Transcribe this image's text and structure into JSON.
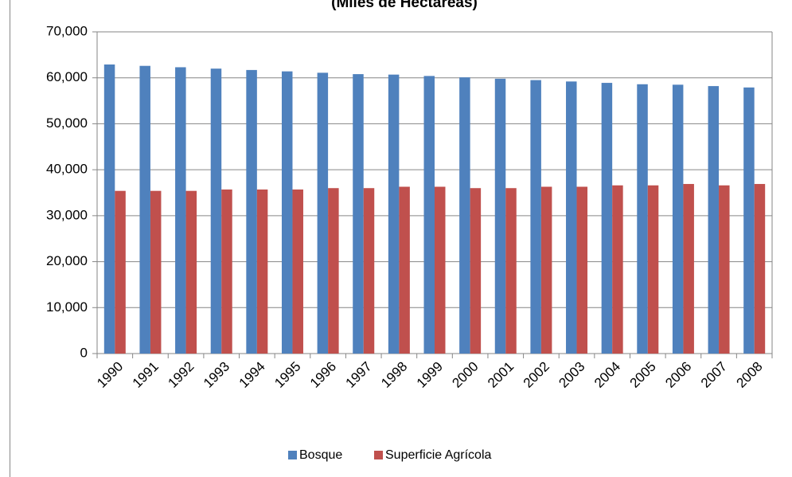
{
  "chart_data": {
    "type": "bar",
    "title": "(Miles de Hectáreas)",
    "categories": [
      "1990",
      "1991",
      "1992",
      "1993",
      "1994",
      "1995",
      "1996",
      "1997",
      "1998",
      "1999",
      "2000",
      "2001",
      "2002",
      "2003",
      "2004",
      "2005",
      "2006",
      "2007",
      "2008"
    ],
    "series": [
      {
        "name": "Bosque",
        "color": "#4f81bd",
        "values": [
          62900,
          62600,
          62300,
          62000,
          61700,
          61400,
          61100,
          60800,
          60700,
          60400,
          60100,
          59800,
          59500,
          59200,
          58900,
          58600,
          58500,
          58200,
          57900
        ]
      },
      {
        "name": "Superficie Agrícola",
        "color": "#c0504d",
        "values": [
          35400,
          35400,
          35400,
          35700,
          35700,
          35700,
          36000,
          36000,
          36300,
          36300,
          36000,
          36000,
          36300,
          36300,
          36600,
          36600,
          36900,
          36600,
          36900
        ]
      }
    ],
    "ylim": [
      0,
      70000
    ],
    "yticks": [
      0,
      {
        "value": 10000,
        "label": "10,000"
      },
      {
        "value": 20000,
        "label": "20,000"
      },
      {
        "value": 30000,
        "label": "30,000"
      },
      {
        "value": 40000,
        "label": "40,000"
      },
      {
        "value": 50000,
        "label": "50,000"
      },
      {
        "value": 60000,
        "label": "60,000"
      },
      {
        "value": 70000,
        "label": "70,000"
      }
    ],
    "grid": true,
    "legend": "bottom"
  }
}
